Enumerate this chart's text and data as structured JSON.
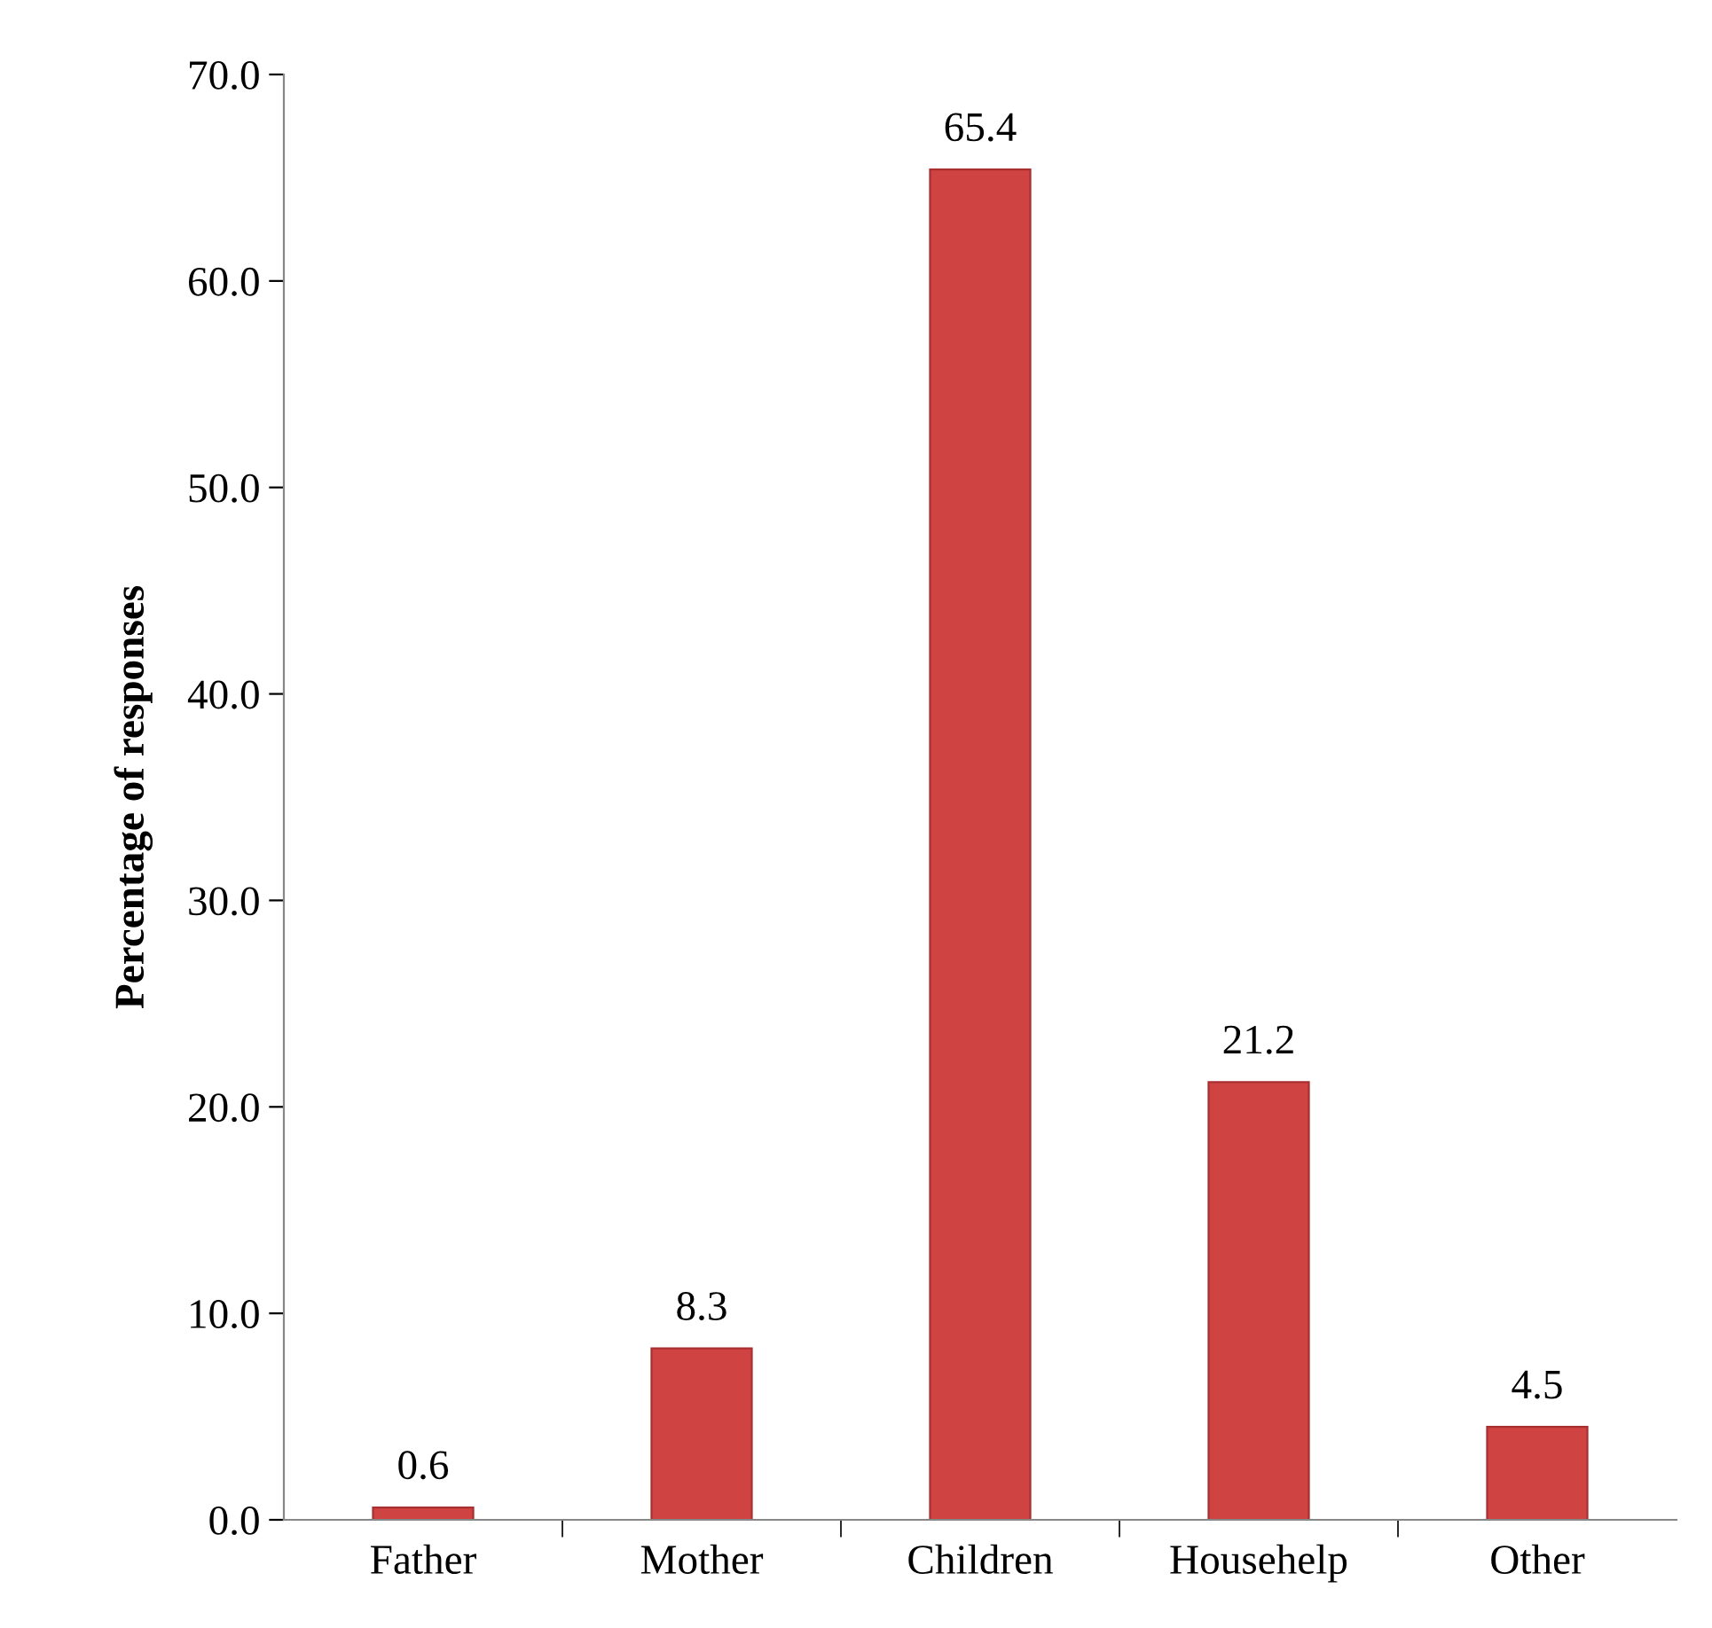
{
  "chart_data": {
    "type": "bar",
    "ylabel": "Percentage of responses",
    "categories": [
      "Father",
      "Mother",
      "Children",
      "Househelp",
      "Other"
    ],
    "values": [
      0.6,
      8.3,
      65.4,
      21.2,
      4.5
    ],
    "value_labels": [
      "0.6",
      "8.3",
      "65.4",
      "21.2",
      "4.5"
    ],
    "color": "#d04343",
    "ylim": [
      0,
      70
    ],
    "yticks": [
      {
        "value": 0,
        "label": "0.0"
      },
      {
        "value": 10,
        "label": "10.0"
      },
      {
        "value": 20,
        "label": "20.0"
      },
      {
        "value": 30,
        "label": "30.0"
      },
      {
        "value": 40,
        "label": "40.0"
      },
      {
        "value": 50,
        "label": "50.0"
      },
      {
        "value": 60,
        "label": "60.0"
      },
      {
        "value": 70,
        "label": "70.0"
      }
    ],
    "grid": false,
    "legend": false
  }
}
